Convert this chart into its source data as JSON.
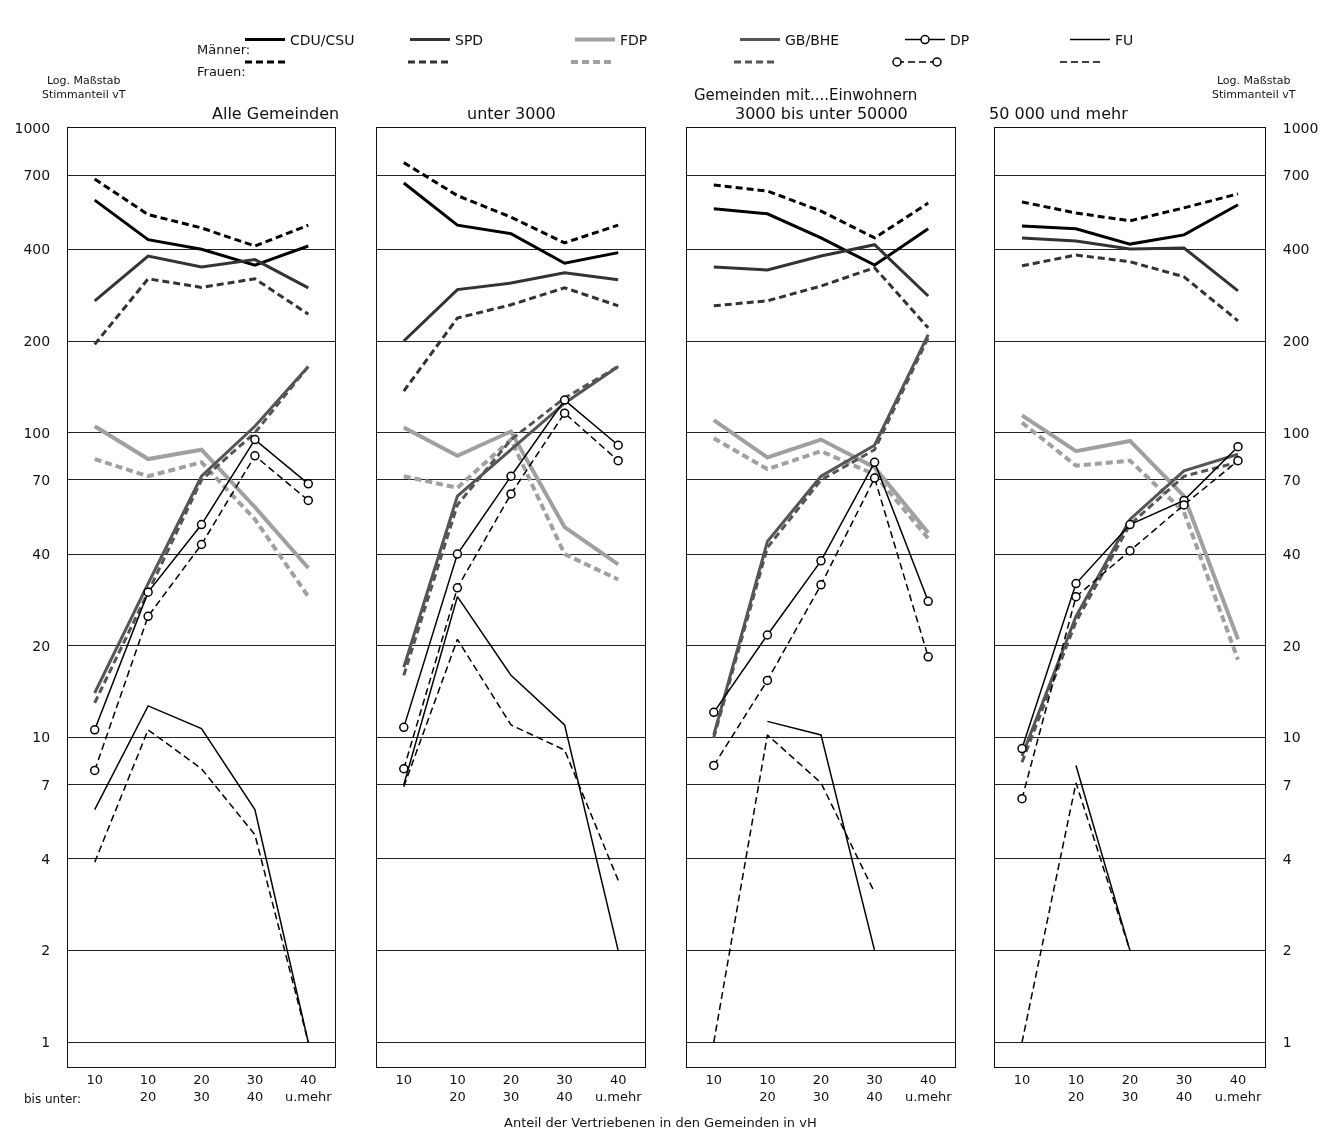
{
  "chart_data": [
    {
      "type": "line",
      "title": "Alle Gemeinden",
      "ylabel": "Log. Maßstab\nStimmanteil vT",
      "categories": [
        "10",
        "10\n20",
        "20\n30",
        "30\n40",
        "40\nu.mehr"
      ],
      "log": true,
      "grid": "y",
      "legend": "top",
      "ylim": [
        0.83,
        1000
      ],
      "yticks": [
        1,
        2,
        4,
        7,
        10,
        20,
        40,
        70,
        100,
        200,
        400,
        700,
        1000
      ],
      "annotations": [
        "bis unter:",
        "Männer:",
        "Frauen:"
      ],
      "series": [
        {
          "name": "CDU/CSU",
          "color": "#000000",
          "line_style": "solid",
          "marker": "none",
          "values": [
            580,
            430,
            400,
            355,
            410
          ]
        },
        {
          "color": "#000000",
          "line_style": "dashed",
          "marker": "none",
          "values": [
            680,
            520,
            470,
            410,
            480
          ]
        },
        {
          "name": "SPD",
          "color": "#333333",
          "line_style": "solid",
          "marker": "none",
          "values": [
            271,
            380,
            350,
            370,
            299
          ]
        },
        {
          "color": "#333333",
          "line_style": "dashed",
          "marker": "none",
          "values": [
            195,
            320,
            300,
            320,
            245
          ]
        },
        {
          "name": "FDP",
          "color": "#a0a0a0",
          "line_style": "solid",
          "marker": "none",
          "values": [
            105,
            82,
            88,
            57,
            36
          ]
        },
        {
          "color": "#a0a0a0",
          "line_style": "dashed",
          "marker": "none",
          "values": [
            82,
            72,
            80,
            52,
            29
          ]
        },
        {
          "name": "GB/BHE",
          "color": "#555555",
          "line_style": "solid",
          "marker": "none",
          "values": [
            14,
            32,
            72,
            105,
            165
          ]
        },
        {
          "color": "#555555",
          "line_style": "dashed",
          "marker": "none",
          "values": [
            13,
            30,
            70,
            100,
            165
          ]
        },
        {
          "name": "DP",
          "color": "#000000",
          "line_style": "solid",
          "marker": "circle",
          "values": [
            10.6,
            30,
            50,
            95,
            68
          ]
        },
        {
          "color": "#000000",
          "line_style": "dashed",
          "marker": "circle",
          "values": [
            7.8,
            25,
            43,
            84,
            60
          ]
        },
        {
          "name": "FU",
          "color": "#000000",
          "line_style": "solid",
          "marker": "none",
          "values": [
            5.8,
            12.7,
            10.7,
            5.8,
            1
          ]
        },
        {
          "color": "#000000",
          "line_style": "dashed",
          "marker": "none",
          "values": [
            3.9,
            10.6,
            7.9,
            4.8,
            1
          ]
        }
      ]
    },
    {
      "type": "line",
      "title": "unter 3000",
      "categories": [
        "10",
        "10\n20",
        "20\n30",
        "30\n40",
        "40\nu.mehr"
      ],
      "log": true,
      "grid": "y",
      "tick_labels": "x",
      "ylim": [
        0.83,
        1000
      ],
      "yticks": [
        1,
        2,
        4,
        7,
        10,
        20,
        40,
        70,
        100,
        200,
        400,
        700,
        1000
      ],
      "annotations": [
        "Gemeinden mit....Einwohnern",
        "Anteil der Vertriebenen in den Gemeinden in vH"
      ],
      "series": [
        {
          "color": "#000000",
          "line_style": "solid",
          "marker": "none",
          "values": [
            660,
            480,
            450,
            360,
            390
          ]
        },
        {
          "color": "#000000",
          "line_style": "dashed",
          "marker": "none",
          "values": [
            770,
            600,
            510,
            420,
            480
          ]
        },
        {
          "color": "#333333",
          "line_style": "solid",
          "marker": "none",
          "values": [
            200,
            295,
            310,
            335,
            318
          ]
        },
        {
          "color": "#333333",
          "line_style": "dashed",
          "marker": "none",
          "values": [
            137,
            238,
            263,
            299,
            261
          ]
        },
        {
          "color": "#a0a0a0",
          "line_style": "solid",
          "marker": "none",
          "values": [
            104,
            84,
            101,
            49,
            37
          ]
        },
        {
          "color": "#a0a0a0",
          "line_style": "dashed",
          "marker": "none",
          "values": [
            72,
            66,
            95,
            40,
            33
          ]
        },
        {
          "color": "#555555",
          "line_style": "solid",
          "marker": "none",
          "values": [
            17,
            62,
            88,
            125,
            165
          ]
        },
        {
          "color": "#555555",
          "line_style": "dashed",
          "marker": "none",
          "values": [
            16,
            58,
            95,
            130,
            165
          ]
        },
        {
          "color": "#000000",
          "line_style": "solid",
          "marker": "circle",
          "values": [
            10.8,
            40,
            72,
            128,
            91
          ]
        },
        {
          "color": "#000000",
          "line_style": "dashed",
          "marker": "circle",
          "values": [
            7.9,
            31,
            63,
            116,
            81
          ]
        },
        {
          "color": "#000000",
          "line_style": "solid",
          "marker": "none",
          "values": [
            7,
            29,
            16,
            11,
            2
          ]
        },
        {
          "color": "#000000",
          "line_style": "dashed",
          "marker": "none",
          "values": [
            6.9,
            21,
            11,
            9.1,
            3.4
          ]
        }
      ]
    },
    {
      "type": "line",
      "title": "3000 bis unter 50000",
      "categories": [
        "10",
        "10\n20",
        "20\n30",
        "30\n40",
        "40\nu.mehr"
      ],
      "log": true,
      "grid": "y",
      "tick_labels": "x",
      "ylim": [
        0.83,
        1000
      ],
      "yticks": [
        1,
        2,
        4,
        7,
        10,
        20,
        40,
        70,
        100,
        200,
        400,
        700,
        1000
      ],
      "series": [
        {
          "color": "#000000",
          "line_style": "solid",
          "marker": "none",
          "values": [
            543,
            523,
            436,
            355,
            467
          ]
        },
        {
          "color": "#000000",
          "line_style": "dashed",
          "marker": "none",
          "values": [
            650,
            621,
            534,
            436,
            567
          ]
        },
        {
          "color": "#333333",
          "line_style": "solid",
          "marker": "none",
          "values": [
            350,
            342,
            380,
            414,
            281
          ]
        },
        {
          "color": "#333333",
          "line_style": "dashed",
          "marker": "none",
          "values": [
            261,
            271,
            303,
            348,
            221
          ]
        },
        {
          "color": "#a0a0a0",
          "line_style": "solid",
          "marker": "none",
          "values": [
            110,
            83,
            95,
            77,
            47
          ]
        },
        {
          "color": "#a0a0a0",
          "line_style": "dashed",
          "marker": "none",
          "values": [
            96,
            76,
            87,
            73,
            45
          ]
        },
        {
          "color": "#555555",
          "line_style": "solid",
          "marker": "none",
          "values": [
            10.2,
            44,
            72,
            91,
            210
          ]
        },
        {
          "color": "#555555",
          "line_style": "dashed",
          "marker": "none",
          "values": [
            10,
            42,
            70,
            88,
            205
          ]
        },
        {
          "color": "#000000",
          "line_style": "solid",
          "marker": "circle",
          "values": [
            12.1,
            21.7,
            38,
            80,
            28
          ]
        },
        {
          "color": "#000000",
          "line_style": "dashed",
          "marker": "circle",
          "values": [
            8.1,
            15.4,
            31.7,
            71,
            18.4
          ]
        },
        {
          "color": "#000000",
          "line_style": "solid",
          "marker": "none",
          "values": [
            null,
            11.3,
            10.2,
            2.0,
            null
          ]
        },
        {
          "color": "#000000",
          "line_style": "dashed",
          "marker": "none",
          "values": [
            1.0,
            10.2,
            7.1,
            3.1,
            null
          ]
        }
      ]
    },
    {
      "type": "line",
      "title": "50 000 und mehr",
      "y2label": "Log. Maßstab\nStimmanteil vT",
      "categories": [
        "10",
        "10\n20",
        "20\n30",
        "30\n40",
        "40\nu.mehr"
      ],
      "log": "y2",
      "grid": "y",
      "y2lim": [
        0.83,
        1000
      ],
      "y2ticks": [
        1,
        2,
        4,
        7,
        10,
        20,
        40,
        70,
        100,
        200,
        400,
        700,
        1000
      ],
      "series": [
        {
          "axis": "y2",
          "color": "#000000",
          "line_style": "solid",
          "marker": "none",
          "values": [
            477,
            467,
            416,
            446,
            560
          ]
        },
        {
          "axis": "y2",
          "color": "#000000",
          "line_style": "dashed",
          "marker": "none",
          "values": [
            572,
            526,
            496,
            547,
            608
          ]
        },
        {
          "axis": "y2",
          "color": "#333333",
          "line_style": "solid",
          "marker": "none",
          "values": [
            436,
            426,
            401,
            404,
            292
          ]
        },
        {
          "axis": "y2",
          "color": "#333333",
          "line_style": "dashed",
          "marker": "none",
          "values": [
            353,
            383,
            364,
            325,
            233
          ]
        },
        {
          "axis": "y2",
          "color": "#a0a0a0",
          "line_style": "solid",
          "marker": "none",
          "values": [
            114,
            87,
            94,
            62,
            21
          ]
        },
        {
          "axis": "y2",
          "color": "#a0a0a0",
          "line_style": "dashed",
          "marker": "none",
          "values": [
            108,
            78,
            81,
            55,
            18
          ]
        },
        {
          "axis": "y2",
          "color": "#555555",
          "line_style": "solid",
          "marker": "none",
          "values": [
            8.7,
            25,
            52,
            75,
            85
          ]
        },
        {
          "axis": "y2",
          "color": "#555555",
          "line_style": "dashed",
          "marker": "none",
          "values": [
            8.3,
            24,
            50,
            72,
            80
          ]
        },
        {
          "axis": "y2",
          "color": "#000000",
          "line_style": "solid",
          "marker": "circle",
          "values": [
            9.2,
            32,
            50,
            60,
            90
          ]
        },
        {
          "axis": "y2",
          "color": "#000000",
          "line_style": "dashed",
          "marker": "circle",
          "values": [
            6.3,
            29,
            41,
            58,
            81
          ]
        },
        {
          "axis": "y2",
          "color": "#000000",
          "line_style": "solid",
          "marker": "none",
          "values": [
            null,
            8.1,
            2.0,
            null,
            null
          ]
        },
        {
          "axis": "y2",
          "color": "#000000",
          "line_style": "dashed",
          "marker": "none",
          "values": [
            1.0,
            7.1,
            2.0,
            null,
            null
          ]
        }
      ]
    }
  ]
}
